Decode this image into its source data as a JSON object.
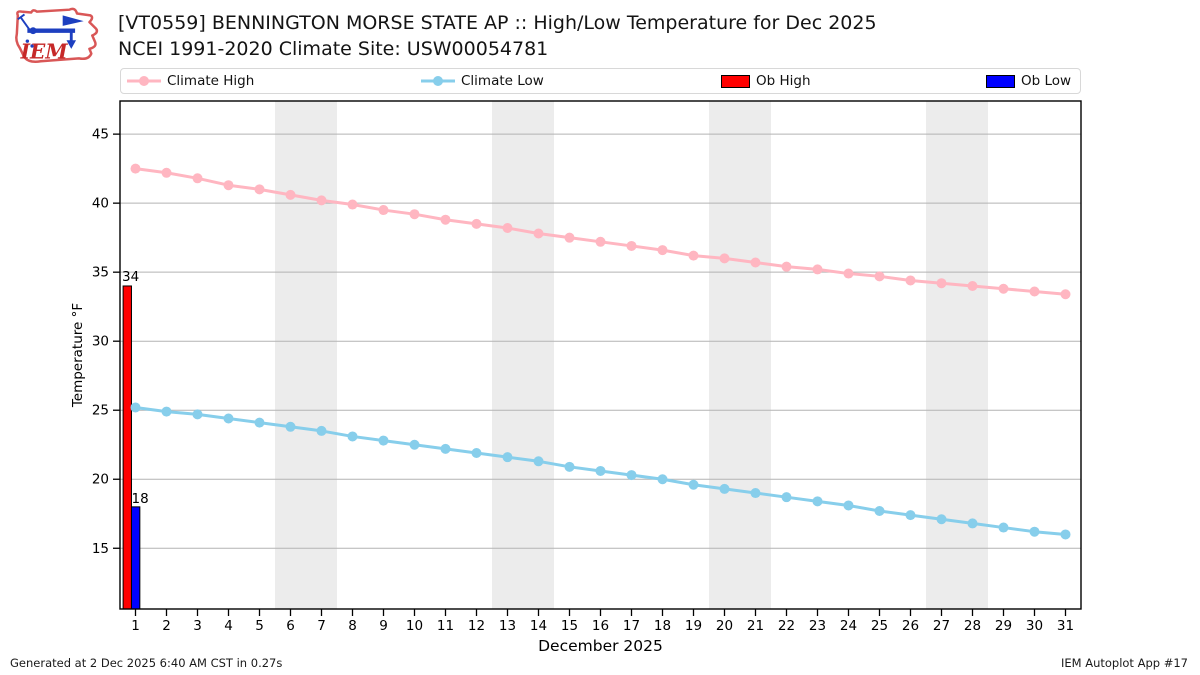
{
  "header": {
    "title": "[VT0559] BENNINGTON MORSE STATE AP :: High/Low Temperature for Dec 2025",
    "subtitle": "NCEI 1991-2020 Climate Site: USW00054781",
    "logo_text": "IEM"
  },
  "legend": {
    "items": [
      {
        "label": "Climate High",
        "type": "line",
        "color": "#ffb6c1"
      },
      {
        "label": "Climate Low",
        "type": "line",
        "color": "#87ceeb"
      },
      {
        "label": "Ob High",
        "type": "patch",
        "color": "#ff0000"
      },
      {
        "label": "Ob Low",
        "type": "patch",
        "color": "#0000ff"
      }
    ]
  },
  "footer": {
    "left": "Generated at 2 Dec 2025 6:40 AM CST in 0.27s",
    "right": "IEM Autoplot App #17"
  },
  "chart_data": {
    "type": "line",
    "title": "[VT0559] BENNINGTON MORSE STATE AP :: High/Low Temperature for Dec 2025",
    "subtitle": "NCEI 1991-2020 Climate Site: USW00054781",
    "xlabel": "December 2025",
    "ylabel": "Temperature °F",
    "x": [
      1,
      2,
      3,
      4,
      5,
      6,
      7,
      8,
      9,
      10,
      11,
      12,
      13,
      14,
      15,
      16,
      17,
      18,
      19,
      20,
      21,
      22,
      23,
      24,
      25,
      26,
      27,
      28,
      29,
      30,
      31
    ],
    "series": [
      {
        "name": "Climate High",
        "color": "#ffb6c1",
        "values": [
          42.5,
          42.2,
          41.8,
          41.3,
          41.0,
          40.6,
          40.2,
          39.9,
          39.5,
          39.2,
          38.8,
          38.5,
          38.2,
          37.8,
          37.5,
          37.2,
          36.9,
          36.6,
          36.2,
          36.0,
          35.7,
          35.4,
          35.2,
          34.9,
          34.7,
          34.4,
          34.2,
          34.0,
          33.8,
          33.6,
          33.4
        ]
      },
      {
        "name": "Climate Low",
        "color": "#87ceeb",
        "values": [
          25.2,
          24.9,
          24.7,
          24.4,
          24.1,
          23.8,
          23.5,
          23.1,
          22.8,
          22.5,
          22.2,
          21.9,
          21.6,
          21.3,
          20.9,
          20.6,
          20.3,
          20.0,
          19.6,
          19.3,
          19.0,
          18.7,
          18.4,
          18.1,
          17.7,
          17.4,
          17.1,
          16.8,
          16.5,
          16.2,
          16.0
        ]
      }
    ],
    "bars": [
      {
        "name": "Ob High",
        "color": "#ff0000",
        "day": 1,
        "value": 34,
        "label": "34"
      },
      {
        "name": "Ob Low",
        "color": "#0000ff",
        "day": 1,
        "value": 18,
        "label": "18"
      }
    ],
    "yticks": [
      15,
      20,
      25,
      30,
      35,
      40,
      45
    ],
    "ylim": [
      10.6,
      47.4
    ],
    "xlim": [
      0.5,
      31.5
    ],
    "grid": "horizontal",
    "grid_color": "#b3b3b3",
    "weekend_bands": [
      [
        5.5,
        7.5
      ],
      [
        12.5,
        14.5
      ],
      [
        19.5,
        21.5
      ],
      [
        26.5,
        28.5
      ]
    ],
    "band_color": "#ececec",
    "legend_position": "top"
  }
}
